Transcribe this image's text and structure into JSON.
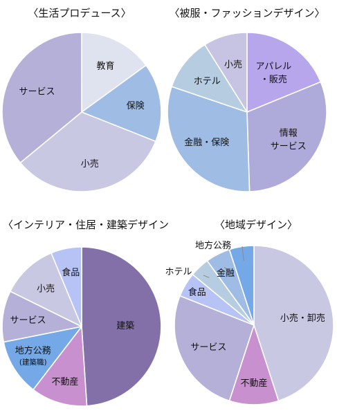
{
  "chart_data": [
    {
      "type": "pie",
      "title": "〈生活プロデュース〉",
      "slices": [
        {
          "label": [
            "教育"
          ],
          "value": 15,
          "color": "#dfe2ef"
        },
        {
          "label": [
            "保険"
          ],
          "value": 16,
          "color": "#9fbce4"
        },
        {
          "label": [
            "小売"
          ],
          "value": 33,
          "color": "#c9c8e3"
        },
        {
          "label": [
            "サービス"
          ],
          "value": 36,
          "color": "#b4b0d8"
        }
      ]
    },
    {
      "type": "pie",
      "title": "〈被服・ファッションデザイン〉",
      "slices": [
        {
          "label": [
            "アパレル",
            "・販売"
          ],
          "value": 19,
          "color": "#b7a6ec"
        },
        {
          "label": [
            "情報",
            "サービス"
          ],
          "value": 31,
          "color": "#aeaad9"
        },
        {
          "label": [
            "金融・保険"
          ],
          "value": 31,
          "color": "#9fbce4"
        },
        {
          "label": [
            "ホテル"
          ],
          "value": 11,
          "color": "#b6cde1"
        },
        {
          "label": [
            "小売"
          ],
          "value": 9,
          "color": "#c6c4e2"
        }
      ]
    },
    {
      "type": "pie",
      "title": "〈インテリア・住居・建築デザイン",
      "slices": [
        {
          "label": [
            "建築"
          ],
          "value": 47,
          "color": "#8470a8"
        },
        {
          "label": [
            "不動産"
          ],
          "value": 11,
          "color": "#c990d0"
        },
        {
          "label": [
            "地方公務",
            "(建築職)"
          ],
          "value": 11,
          "color": "#74a8e6"
        },
        {
          "label": [
            "サービス"
          ],
          "value": 10,
          "color": "#b4b0d8"
        },
        {
          "label": [
            "小売"
          ],
          "value": 11,
          "color": "#c9c8e3"
        },
        {
          "label": [
            "食品"
          ],
          "value": 6,
          "color": "#b7c3f5"
        }
      ]
    },
    {
      "type": "pie",
      "title": "〈地域デザイン〉",
      "slices": [
        {
          "label": [
            "小売・卸売"
          ],
          "value": 45,
          "color": "#c9c8e3"
        },
        {
          "label": [
            "不動産"
          ],
          "value": 10,
          "color": "#c990d0"
        },
        {
          "label": [
            "サービス"
          ],
          "value": 26,
          "color": "#b4b0d8"
        },
        {
          "label": [
            "食品"
          ],
          "value": 5,
          "color": "#b7c3f5"
        },
        {
          "label": [
            "ホテル"
          ],
          "value": 4,
          "color": "#b6cde1"
        },
        {
          "label": [
            "金融"
          ],
          "value": 5,
          "color": "#9fbce4"
        },
        {
          "label": [
            "地方公務"
          ],
          "value": 5,
          "color": "#74a8e6"
        }
      ]
    }
  ]
}
